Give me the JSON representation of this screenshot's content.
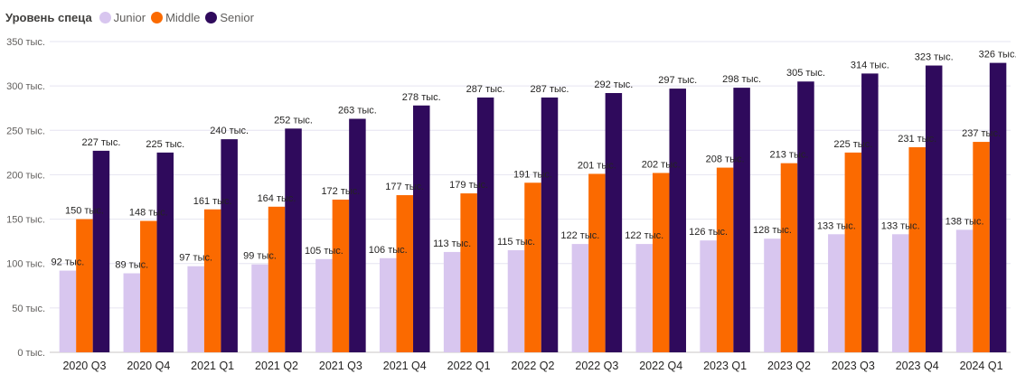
{
  "legend": {
    "title": "Уровень спеца",
    "items": [
      {
        "label": "Junior",
        "color": "#d8c6ef"
      },
      {
        "label": "Middle",
        "color": "#fb6a00"
      },
      {
        "label": "Senior",
        "color": "#2f0a5c"
      }
    ]
  },
  "chart_data": {
    "type": "bar",
    "categories": [
      "2020 Q3",
      "2020 Q4",
      "2021 Q1",
      "2021 Q2",
      "2021 Q3",
      "2021 Q4",
      "2022 Q1",
      "2022 Q2",
      "2022 Q3",
      "2022 Q4",
      "2023 Q1",
      "2023 Q2",
      "2023 Q3",
      "2023 Q4",
      "2024 Q1"
    ],
    "series": [
      {
        "name": "Junior",
        "color": "#d8c6ef",
        "values": [
          92,
          89,
          97,
          99,
          105,
          106,
          113,
          115,
          122,
          122,
          126,
          128,
          133,
          133,
          138
        ]
      },
      {
        "name": "Middle",
        "color": "#fb6a00",
        "values": [
          150,
          148,
          161,
          164,
          172,
          177,
          179,
          191,
          201,
          202,
          208,
          213,
          225,
          231,
          237
        ]
      },
      {
        "name": "Senior",
        "color": "#2f0a5c",
        "values": [
          227,
          225,
          240,
          252,
          263,
          278,
          287,
          287,
          292,
          297,
          298,
          305,
          314,
          323,
          326
        ]
      }
    ],
    "label_suffix": " тыс.",
    "y_ticks": [
      "0 тыс.",
      "50 тыс.",
      "100 тыс.",
      "150 тыс.",
      "200 тыс.",
      "250 тыс.",
      "300 тыс.",
      "350 тыс."
    ],
    "ylim": [
      0,
      350
    ],
    "grid": true,
    "legend_position": "top-left"
  }
}
